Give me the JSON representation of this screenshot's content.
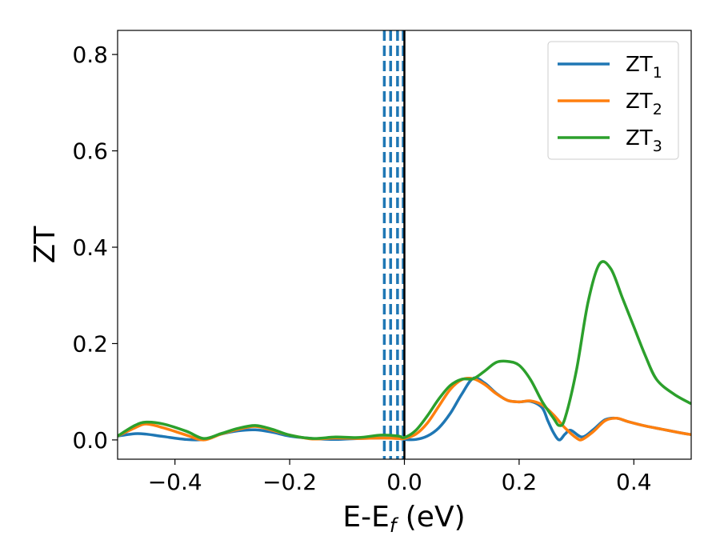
{
  "chart_data": {
    "type": "line",
    "xlabel": "E-E",
    "xlabel_sub": "f",
    "xlabel_unit": " (eV)",
    "ylabel": "ZT",
    "xlim": [
      -0.5,
      0.5
    ],
    "ylim": [
      -0.04,
      0.85
    ],
    "x_ticks": [
      -0.4,
      -0.2,
      0.0,
      0.2,
      0.4
    ],
    "x_tick_labels": [
      "−0.4",
      "−0.2",
      "0.0",
      "0.2",
      "0.4"
    ],
    "y_ticks": [
      0.0,
      0.2,
      0.4,
      0.6,
      0.8
    ],
    "y_tick_labels": [
      "0.0",
      "0.2",
      "0.4",
      "0.6",
      "0.8"
    ],
    "grid": false,
    "legend_position": "top-right",
    "vlines": [
      {
        "x": -0.035,
        "style": "dashed",
        "color": "#1f77b4"
      },
      {
        "x": -0.024,
        "style": "dashed",
        "color": "#1f77b4"
      },
      {
        "x": -0.012,
        "style": "dashed",
        "color": "#1f77b4"
      },
      {
        "x": -0.002,
        "style": "dashed",
        "color": "#1f77b4"
      },
      {
        "x": 0.0,
        "style": "solid",
        "color": "#000000"
      }
    ],
    "series": [
      {
        "name": "ZT",
        "name_sub": "1",
        "color": "#1f77b4",
        "points": [
          [
            -0.5,
            0.008
          ],
          [
            -0.47,
            0.013
          ],
          [
            -0.45,
            0.012
          ],
          [
            -0.42,
            0.007
          ],
          [
            -0.38,
            0.001
          ],
          [
            -0.35,
            0.001
          ],
          [
            -0.32,
            0.012
          ],
          [
            -0.29,
            0.019
          ],
          [
            -0.26,
            0.021
          ],
          [
            -0.23,
            0.016
          ],
          [
            -0.2,
            0.008
          ],
          [
            -0.16,
            0.003
          ],
          [
            -0.12,
            0.001
          ],
          [
            -0.08,
            0.003
          ],
          [
            -0.04,
            0.004
          ],
          [
            -0.01,
            0.003
          ],
          [
            0.0,
            0.001
          ],
          [
            0.02,
            0.001
          ],
          [
            0.04,
            0.008
          ],
          [
            0.06,
            0.025
          ],
          [
            0.08,
            0.055
          ],
          [
            0.1,
            0.095
          ],
          [
            0.12,
            0.128
          ],
          [
            0.14,
            0.118
          ],
          [
            0.16,
            0.097
          ],
          [
            0.18,
            0.082
          ],
          [
            0.2,
            0.079
          ],
          [
            0.22,
            0.08
          ],
          [
            0.24,
            0.067
          ],
          [
            0.25,
            0.04
          ],
          [
            0.26,
            0.015
          ],
          [
            0.27,
            0.0
          ],
          [
            0.28,
            0.012
          ],
          [
            0.29,
            0.02
          ],
          [
            0.31,
            0.006
          ],
          [
            0.33,
            0.022
          ],
          [
            0.35,
            0.042
          ],
          [
            0.37,
            0.045
          ],
          [
            0.39,
            0.038
          ],
          [
            0.42,
            0.029
          ],
          [
            0.45,
            0.022
          ],
          [
            0.48,
            0.015
          ],
          [
            0.5,
            0.011
          ]
        ]
      },
      {
        "name": "ZT",
        "name_sub": "2",
        "color": "#ff7f0e",
        "points": [
          [
            -0.5,
            0.008
          ],
          [
            -0.47,
            0.025
          ],
          [
            -0.45,
            0.033
          ],
          [
            -0.42,
            0.025
          ],
          [
            -0.38,
            0.01
          ],
          [
            -0.35,
            0.0
          ],
          [
            -0.32,
            0.012
          ],
          [
            -0.29,
            0.022
          ],
          [
            -0.26,
            0.028
          ],
          [
            -0.23,
            0.02
          ],
          [
            -0.2,
            0.01
          ],
          [
            -0.16,
            0.002
          ],
          [
            -0.12,
            0.004
          ],
          [
            -0.08,
            0.003
          ],
          [
            -0.04,
            0.004
          ],
          [
            -0.01,
            0.003
          ],
          [
            0.0,
            0.003
          ],
          [
            0.02,
            0.012
          ],
          [
            0.04,
            0.035
          ],
          [
            0.06,
            0.07
          ],
          [
            0.08,
            0.105
          ],
          [
            0.1,
            0.125
          ],
          [
            0.12,
            0.127
          ],
          [
            0.14,
            0.115
          ],
          [
            0.16,
            0.096
          ],
          [
            0.18,
            0.082
          ],
          [
            0.2,
            0.079
          ],
          [
            0.22,
            0.081
          ],
          [
            0.24,
            0.073
          ],
          [
            0.26,
            0.052
          ],
          [
            0.28,
            0.025
          ],
          [
            0.3,
            0.004
          ],
          [
            0.31,
            0.001
          ],
          [
            0.33,
            0.018
          ],
          [
            0.35,
            0.04
          ],
          [
            0.37,
            0.045
          ],
          [
            0.39,
            0.038
          ],
          [
            0.42,
            0.029
          ],
          [
            0.45,
            0.022
          ],
          [
            0.48,
            0.015
          ],
          [
            0.5,
            0.011
          ]
        ]
      },
      {
        "name": "ZT",
        "name_sub": "3",
        "color": "#2ca02c",
        "points": [
          [
            -0.5,
            0.008
          ],
          [
            -0.47,
            0.03
          ],
          [
            -0.45,
            0.037
          ],
          [
            -0.42,
            0.033
          ],
          [
            -0.38,
            0.018
          ],
          [
            -0.35,
            0.003
          ],
          [
            -0.32,
            0.013
          ],
          [
            -0.29,
            0.024
          ],
          [
            -0.26,
            0.03
          ],
          [
            -0.23,
            0.022
          ],
          [
            -0.2,
            0.01
          ],
          [
            -0.16,
            0.003
          ],
          [
            -0.12,
            0.006
          ],
          [
            -0.08,
            0.005
          ],
          [
            -0.04,
            0.01
          ],
          [
            -0.01,
            0.008
          ],
          [
            0.0,
            0.005
          ],
          [
            0.02,
            0.02
          ],
          [
            0.04,
            0.05
          ],
          [
            0.06,
            0.085
          ],
          [
            0.08,
            0.113
          ],
          [
            0.1,
            0.126
          ],
          [
            0.12,
            0.127
          ],
          [
            0.14,
            0.143
          ],
          [
            0.16,
            0.161
          ],
          [
            0.18,
            0.163
          ],
          [
            0.2,
            0.155
          ],
          [
            0.22,
            0.125
          ],
          [
            0.24,
            0.08
          ],
          [
            0.26,
            0.045
          ],
          [
            0.27,
            0.03
          ],
          [
            0.28,
            0.045
          ],
          [
            0.3,
            0.145
          ],
          [
            0.32,
            0.285
          ],
          [
            0.34,
            0.365
          ],
          [
            0.36,
            0.355
          ],
          [
            0.38,
            0.295
          ],
          [
            0.4,
            0.235
          ],
          [
            0.42,
            0.175
          ],
          [
            0.44,
            0.125
          ],
          [
            0.47,
            0.095
          ],
          [
            0.5,
            0.075
          ]
        ]
      }
    ]
  }
}
